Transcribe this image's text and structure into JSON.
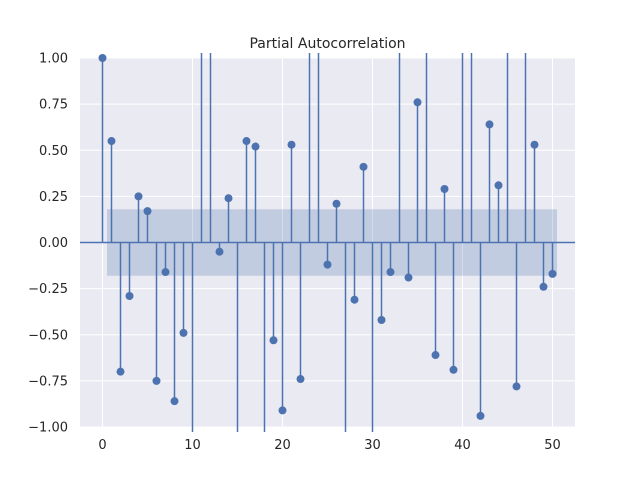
{
  "chart_data": {
    "type": "stem",
    "title": "Partial Autocorrelation",
    "xlabel": "",
    "ylabel": "",
    "xlim": [
      -2.5,
      52.5
    ],
    "ylim": [
      -1.0,
      1.0
    ],
    "xticks": [
      0,
      10,
      20,
      30,
      40,
      50
    ],
    "xtick_labels": [
      "0",
      "10",
      "20",
      "30",
      "40",
      "50"
    ],
    "yticks": [
      -1.0,
      -0.75,
      -0.5,
      -0.25,
      0.0,
      0.25,
      0.5,
      0.75,
      1.0
    ],
    "ytick_labels": [
      "−1.00",
      "−0.75",
      "−0.50",
      "−0.25",
      "0.00",
      "0.25",
      "0.50",
      "0.75",
      "1.00"
    ],
    "grid": true,
    "confidence_band": {
      "lower": -0.18,
      "upper": 0.18,
      "x_start": 0.5,
      "x_end": 50.5
    },
    "lags": [
      0,
      1,
      2,
      3,
      4,
      5,
      6,
      7,
      8,
      9,
      10,
      11,
      12,
      13,
      14,
      15,
      16,
      17,
      18,
      19,
      20,
      21,
      22,
      23,
      24,
      25,
      26,
      27,
      28,
      29,
      30,
      31,
      32,
      33,
      34,
      35,
      36,
      37,
      38,
      39,
      40,
      41,
      42,
      43,
      44,
      45,
      46,
      47,
      48,
      49,
      50
    ],
    "values": [
      1.0,
      0.55,
      -0.7,
      -0.29,
      0.25,
      0.17,
      -0.75,
      -0.16,
      -0.86,
      -0.49,
      -1.5,
      1.5,
      1.5,
      -0.05,
      0.24,
      -1.5,
      0.55,
      0.52,
      -1.5,
      -0.53,
      -0.91,
      0.53,
      -0.74,
      1.5,
      1.5,
      -0.12,
      0.21,
      -1.5,
      -0.31,
      0.41,
      -1.5,
      -0.42,
      -0.16,
      1.5,
      -0.19,
      0.76,
      1.5,
      -0.61,
      0.29,
      -0.69,
      1.5,
      1.5,
      -0.94,
      0.64,
      0.31,
      1.5,
      -0.78,
      1.5,
      0.53,
      -0.24,
      -0.17
    ],
    "colors": {
      "stem": "#4c72b0",
      "band": "#4c72b0",
      "background": "#eaeaf2",
      "grid": "#ffffff"
    }
  }
}
